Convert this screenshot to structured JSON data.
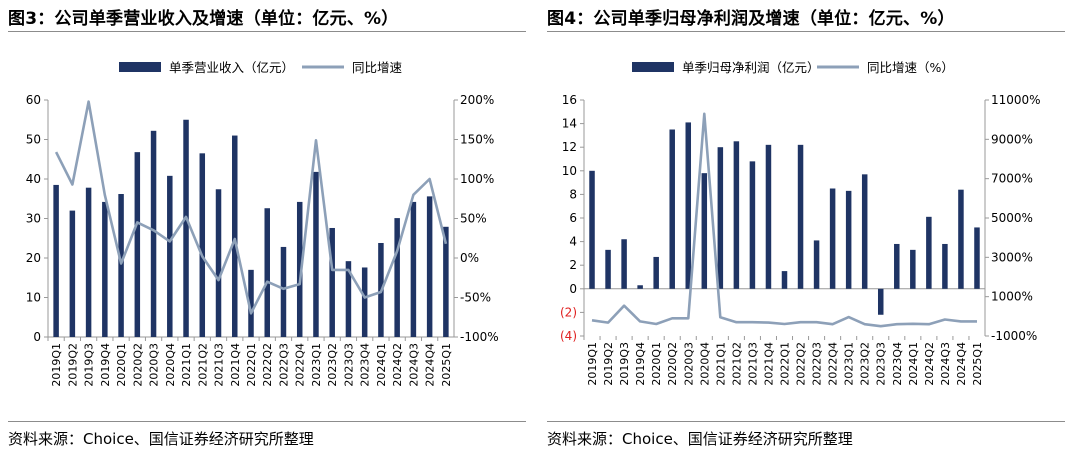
{
  "colors": {
    "bar": "#1f3464",
    "line": "#8da0b8",
    "axis": "#999999",
    "negative_label": "#e02020",
    "rule": "#8c8c8c"
  },
  "figures": [
    {
      "title": "图3：公司单季营业收入及增速（单位：亿元、%）",
      "source": "资料来源：Choice、国信证券经济研究所整理"
    },
    {
      "title": "图4：公司单季归母净利润及增速（单位：亿元、%）",
      "source": "资料来源：Choice、国信证券经济研究所整理"
    }
  ],
  "chart_data": [
    {
      "type": "bar",
      "title": "图3：公司单季营业收入及增速（单位：亿元、%）",
      "legend_placement": "top",
      "grid": false,
      "categories": [
        "2019Q1",
        "2019Q2",
        "2019Q3",
        "2019Q4",
        "2020Q1",
        "2020Q2",
        "2020Q3",
        "2020Q4",
        "2021Q1",
        "2021Q2",
        "2021Q3",
        "2021Q4",
        "2022Q1",
        "2022Q2",
        "2022Q3",
        "2022Q4",
        "2023Q1",
        "2023Q2",
        "2023Q3",
        "2023Q4",
        "2024Q1",
        "2024Q2",
        "2024Q3",
        "2024Q4",
        "2025Q1"
      ],
      "y_left": {
        "min": 0,
        "max": 60,
        "ticks": [
          0,
          10,
          20,
          30,
          40,
          50,
          60
        ],
        "tick_labels": [
          "0",
          "10",
          "20",
          "30",
          "40",
          "50",
          "60"
        ]
      },
      "y_right": {
        "min": -100,
        "max": 200,
        "ticks": [
          -100,
          -50,
          0,
          50,
          100,
          150,
          200
        ],
        "tick_labels": [
          "-100%",
          "-50%",
          "0%",
          "50%",
          "100%",
          "150%",
          "200%"
        ]
      },
      "series": [
        {
          "name": "单季营业收入（亿元）",
          "kind": "bar",
          "axis": "left",
          "values": [
            38.5,
            32,
            37.8,
            34.2,
            36.2,
            46.8,
            52.2,
            40.8,
            55,
            46.5,
            37.4,
            51,
            17,
            32.6,
            22.8,
            34.2,
            41.8,
            27.6,
            19.2,
            17.6,
            23.8,
            30.1,
            34.2,
            35.6,
            27.9
          ]
        },
        {
          "name": "同比增速",
          "kind": "line",
          "axis": "right",
          "values": [
            134,
            93,
            198,
            80,
            -7,
            45,
            35,
            21,
            52,
            2,
            -28,
            24,
            -70,
            -30,
            -39,
            -33,
            149,
            -15,
            -15,
            -50,
            -43,
            9,
            80,
            100,
            18
          ]
        }
      ]
    },
    {
      "type": "bar",
      "title": "图4：公司单季归母净利润及增速（单位：亿元、%）",
      "legend_placement": "top",
      "grid": false,
      "categories": [
        "2019Q1",
        "2019Q2",
        "2019Q3",
        "2019Q4",
        "2020Q1",
        "2020Q2",
        "2020Q3",
        "2020Q4",
        "2021Q1",
        "2021Q2",
        "2021Q3",
        "2021Q4",
        "2022Q1",
        "2022Q2",
        "2022Q3",
        "2022Q4",
        "2023Q1",
        "2023Q2",
        "2023Q3",
        "2023Q4",
        "2024Q1",
        "2024Q2",
        "2024Q3",
        "2024Q4",
        "2025Q1"
      ],
      "y_left": {
        "min": -4,
        "max": 16,
        "ticks": [
          -4,
          -2,
          0,
          2,
          4,
          6,
          8,
          10,
          12,
          14,
          16
        ],
        "tick_labels": [
          "(4)",
          "(2)",
          "0",
          "2",
          "4",
          "6",
          "8",
          "10",
          "12",
          "14",
          "16"
        ]
      },
      "y_right": {
        "min": -1000,
        "max": 11000,
        "ticks": [
          -1000,
          1000,
          3000,
          5000,
          7000,
          9000,
          11000
        ],
        "tick_labels": [
          "-1000%",
          "1000%",
          "3000%",
          "5000%",
          "7000%",
          "9000%",
          "11000%"
        ]
      },
      "series": [
        {
          "name": "单季归母净利润（亿元）",
          "kind": "bar",
          "axis": "left",
          "values": [
            10,
            3.3,
            4.2,
            0.3,
            2.7,
            13.5,
            14.1,
            9.8,
            12,
            12.5,
            10.8,
            12.2,
            1.5,
            12.2,
            4.1,
            8.5,
            8.3,
            9.7,
            -2.2,
            3.8,
            3.3,
            6.1,
            3.8,
            8.4,
            5.2
          ]
        },
        {
          "name": "同比增速（%）",
          "kind": "line",
          "axis": "right",
          "values": [
            -200,
            -320,
            540,
            -260,
            -390,
            -100,
            -100,
            10300,
            -50,
            -300,
            -300,
            -320,
            -390,
            -300,
            -300,
            -400,
            -40,
            -400,
            -500,
            -400,
            -380,
            -400,
            -160,
            -260,
            -260
          ]
        }
      ]
    }
  ]
}
